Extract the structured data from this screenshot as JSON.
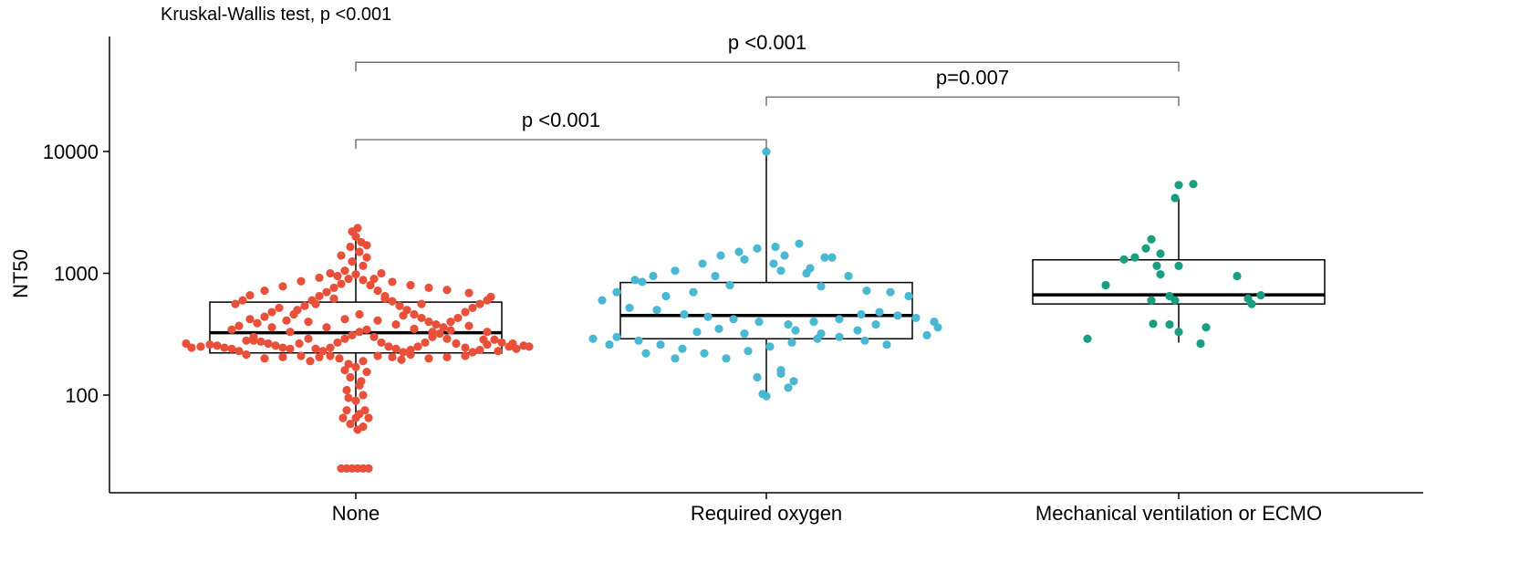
{
  "chart_data": {
    "type": "box-jitter",
    "title": "",
    "subtitle": "Kruskal-Wallis test, p <0.001",
    "xlabel": "",
    "ylabel": "NT50",
    "y_scale": "log10",
    "ylim": [
      16,
      80000
    ],
    "y_ticks": [
      100,
      1000,
      10000
    ],
    "y_tick_labels": [
      "100",
      "1000",
      "10000"
    ],
    "categories": [
      "None",
      "Required oxygen",
      "Mechanical ventilation or ECMO"
    ],
    "colors": [
      "#E8503A",
      "#4BB8D3",
      "#1A9E82"
    ],
    "boxes": [
      {
        "category": "None",
        "whisker_low": 52,
        "q1": 222,
        "median": 325,
        "q3": 580,
        "whisker_high": 2350
      },
      {
        "category": "Required oxygen",
        "whisker_low": 100,
        "q1": 290,
        "median": 450,
        "q3": 840,
        "whisker_high": 9900
      },
      {
        "category": "Mechanical ventilation or ECMO",
        "whisker_low": 270,
        "q1": 560,
        "median": 665,
        "q3": 1290,
        "whisker_high": 4100
      }
    ],
    "comparisons": [
      {
        "group1": "None",
        "group2": "Required oxygen",
        "label": "p <0.001",
        "y": 12500
      },
      {
        "group1": "Required oxygen",
        "group2": "Mechanical ventilation or ECMO",
        "label": "p=0.007",
        "y": 28000
      },
      {
        "group1": "None",
        "group2": "Mechanical ventilation or ECMO",
        "label": "p <0.001",
        "y": 54000
      }
    ],
    "series": [
      {
        "category": "None",
        "points": [
          [
            -0.93,
            265
          ],
          [
            -0.9,
            245
          ],
          [
            -0.85,
            250
          ],
          [
            -0.8,
            260
          ],
          [
            -0.76,
            255
          ],
          [
            -0.72,
            245
          ],
          [
            -0.68,
            240
          ],
          [
            -0.64,
            230
          ],
          [
            -0.6,
            280
          ],
          [
            -0.56,
            300
          ],
          [
            -0.52,
            275
          ],
          [
            -0.48,
            265
          ],
          [
            -0.44,
            255
          ],
          [
            -0.4,
            245
          ],
          [
            -0.36,
            240
          ],
          [
            -0.31,
            265
          ],
          [
            -0.26,
            290
          ],
          [
            -0.22,
            240
          ],
          [
            -0.18,
            230
          ],
          [
            -0.14,
            245
          ],
          [
            -0.1,
            270
          ],
          [
            -0.06,
            290
          ],
          [
            -0.02,
            310
          ],
          [
            0.02,
            330
          ],
          [
            0.06,
            345
          ],
          [
            0.1,
            300
          ],
          [
            0.14,
            270
          ],
          [
            0.18,
            250
          ],
          [
            0.22,
            240
          ],
          [
            0.26,
            225
          ],
          [
            0.3,
            235
          ],
          [
            0.34,
            250
          ],
          [
            0.38,
            270
          ],
          [
            0.42,
            300
          ],
          [
            0.46,
            320
          ],
          [
            0.5,
            290
          ],
          [
            0.55,
            265
          ],
          [
            0.6,
            245
          ],
          [
            0.64,
            225
          ],
          [
            0.68,
            235
          ],
          [
            0.72,
            260
          ],
          [
            0.76,
            285
          ],
          [
            0.8,
            270
          ],
          [
            0.84,
            250
          ],
          [
            0.88,
            240
          ],
          [
            0.92,
            255
          ],
          [
            0.95,
            250
          ],
          [
            0.86,
            265
          ],
          [
            0.78,
            230
          ],
          [
            0.7,
            285
          ],
          [
            -0.68,
            345
          ],
          [
            -0.64,
            370
          ],
          [
            -0.58,
            420
          ],
          [
            -0.54,
            390
          ],
          [
            -0.5,
            440
          ],
          [
            -0.46,
            480
          ],
          [
            -0.42,
            520
          ],
          [
            -0.38,
            410
          ],
          [
            -0.34,
            460
          ],
          [
            -0.28,
            540
          ],
          [
            -0.24,
            600
          ],
          [
            -0.2,
            650
          ],
          [
            -0.16,
            700
          ],
          [
            -0.12,
            760
          ],
          [
            -0.08,
            820
          ],
          [
            -0.04,
            900
          ],
          [
            0.0,
            980
          ],
          [
            0.04,
            880
          ],
          [
            0.08,
            800
          ],
          [
            0.12,
            720
          ],
          [
            0.16,
            650
          ],
          [
            0.2,
            590
          ],
          [
            0.24,
            540
          ],
          [
            0.28,
            500
          ],
          [
            0.32,
            460
          ],
          [
            0.36,
            430
          ],
          [
            0.4,
            400
          ],
          [
            0.44,
            380
          ],
          [
            0.48,
            360
          ],
          [
            0.52,
            340
          ],
          [
            0.56,
            430
          ],
          [
            0.6,
            480
          ],
          [
            0.64,
            520
          ],
          [
            0.68,
            560
          ],
          [
            0.72,
            600
          ],
          [
            0.74,
            640
          ],
          [
            0.62,
            690
          ],
          [
            0.5,
            730
          ],
          [
            0.4,
            760
          ],
          [
            0.3,
            800
          ],
          [
            0.2,
            850
          ],
          [
            0.1,
            900
          ],
          [
            -0.1,
            950
          ],
          [
            -0.2,
            920
          ],
          [
            -0.3,
            860
          ],
          [
            -0.4,
            780
          ],
          [
            -0.5,
            720
          ],
          [
            -0.58,
            660
          ],
          [
            -0.62,
            600
          ],
          [
            -0.66,
            560
          ],
          [
            -0.06,
            1050
          ],
          [
            0.04,
            1150
          ],
          [
            -0.14,
            1000
          ],
          [
            0.14,
            1000
          ],
          [
            -0.02,
            1250
          ],
          [
            0.06,
            1350
          ],
          [
            -0.08,
            1400
          ],
          [
            0.02,
            1500
          ],
          [
            -0.03,
            1650
          ],
          [
            0.03,
            1800
          ],
          [
            0.06,
            1700
          ],
          [
            0.0,
            2000
          ],
          [
            -0.02,
            2200
          ],
          [
            0.01,
            2350
          ],
          [
            -0.56,
            280
          ],
          [
            -0.46,
            360
          ],
          [
            -0.36,
            330
          ],
          [
            -0.26,
            400
          ],
          [
            -0.16,
            360
          ],
          [
            -0.06,
            420
          ],
          [
            0.02,
            460
          ],
          [
            0.12,
            410
          ],
          [
            0.22,
            380
          ],
          [
            0.32,
            350
          ],
          [
            0.42,
            330
          ],
          [
            0.52,
            400
          ],
          [
            0.62,
            370
          ],
          [
            0.72,
            330
          ],
          [
            -0.32,
            500
          ],
          [
            0.26,
            450
          ],
          [
            -0.22,
            560
          ],
          [
            0.36,
            560
          ],
          [
            -0.12,
            620
          ],
          [
            0.16,
            620
          ],
          [
            -0.09,
            200
          ],
          [
            -0.04,
            180
          ],
          [
            0.0,
            170
          ],
          [
            0.04,
            190
          ],
          [
            -0.14,
            210
          ],
          [
            0.12,
            210
          ],
          [
            -0.2,
            205
          ],
          [
            0.2,
            205
          ],
          [
            -0.3,
            210
          ],
          [
            0.3,
            215
          ],
          [
            -0.4,
            205
          ],
          [
            0.4,
            200
          ],
          [
            -0.5,
            200
          ],
          [
            0.5,
            205
          ],
          [
            -0.6,
            215
          ],
          [
            0.6,
            210
          ],
          [
            -0.25,
            190
          ],
          [
            0.25,
            195
          ],
          [
            -0.06,
            160
          ],
          [
            0.06,
            155
          ],
          [
            -0.03,
            140
          ],
          [
            0.03,
            130
          ],
          [
            -0.05,
            110
          ],
          [
            0.04,
            100
          ],
          [
            0.0,
            90
          ],
          [
            0.02,
            120
          ],
          [
            -0.04,
            95
          ],
          [
            -0.05,
            75
          ],
          [
            0.05,
            75
          ],
          [
            0.02,
            70
          ],
          [
            -0.07,
            65
          ],
          [
            0.0,
            65
          ],
          [
            0.07,
            65
          ],
          [
            -0.03,
            58
          ],
          [
            0.04,
            55
          ],
          [
            0.01,
            52
          ],
          [
            -0.08,
            25
          ],
          [
            -0.05,
            25
          ],
          [
            -0.02,
            25
          ],
          [
            0.01,
            25
          ],
          [
            0.04,
            25
          ],
          [
            0.07,
            25
          ]
        ]
      },
      {
        "category": "Required oxygen",
        "points": [
          [
            0.0,
            9950
          ],
          [
            0.18,
            1750
          ],
          [
            0.05,
            1650
          ],
          [
            -0.05,
            1600
          ],
          [
            -0.15,
            1500
          ],
          [
            -0.25,
            1400
          ],
          [
            0.1,
            1400
          ],
          [
            0.32,
            1350
          ],
          [
            0.36,
            1350
          ],
          [
            0.24,
            1100
          ],
          [
            -0.12,
            1300
          ],
          [
            0.04,
            1200
          ],
          [
            -0.35,
            1200
          ],
          [
            -0.5,
            1050
          ],
          [
            0.08,
            1050
          ],
          [
            0.22,
            1000
          ],
          [
            -0.28,
            950
          ],
          [
            -0.62,
            950
          ],
          [
            0.45,
            950
          ],
          [
            -0.72,
            880
          ],
          [
            -0.82,
            700
          ],
          [
            -0.68,
            850
          ],
          [
            -0.55,
            650
          ],
          [
            -0.4,
            700
          ],
          [
            -0.2,
            800
          ],
          [
            0.3,
            780
          ],
          [
            0.55,
            720
          ],
          [
            0.68,
            700
          ],
          [
            0.78,
            650
          ],
          [
            -0.9,
            600
          ],
          [
            -0.75,
            520
          ],
          [
            -0.6,
            500
          ],
          [
            -0.45,
            460
          ],
          [
            -0.32,
            440
          ],
          [
            -0.18,
            420
          ],
          [
            -0.04,
            400
          ],
          [
            0.12,
            380
          ],
          [
            0.26,
            400
          ],
          [
            0.4,
            420
          ],
          [
            0.52,
            460
          ],
          [
            0.62,
            480
          ],
          [
            0.72,
            450
          ],
          [
            0.82,
            430
          ],
          [
            0.92,
            400
          ],
          [
            0.94,
            360
          ],
          [
            0.88,
            310
          ],
          [
            -0.95,
            290
          ],
          [
            -0.82,
            300
          ],
          [
            -0.7,
            280
          ],
          [
            -0.58,
            260
          ],
          [
            -0.46,
            240
          ],
          [
            -0.34,
            220
          ],
          [
            -0.22,
            200
          ],
          [
            -0.1,
            230
          ],
          [
            0.02,
            250
          ],
          [
            0.14,
            270
          ],
          [
            0.28,
            290
          ],
          [
            0.4,
            300
          ],
          [
            0.54,
            280
          ],
          [
            0.66,
            260
          ],
          [
            -0.38,
            330
          ],
          [
            -0.26,
            350
          ],
          [
            -0.12,
            320
          ],
          [
            0.16,
            340
          ],
          [
            0.3,
            320
          ],
          [
            0.5,
            340
          ],
          [
            -0.86,
            260
          ],
          [
            -0.66,
            220
          ],
          [
            -0.5,
            200
          ],
          [
            0.08,
            160
          ],
          [
            -0.05,
            140
          ],
          [
            0.15,
            130
          ],
          [
            0.12,
            115
          ],
          [
            -0.02,
            102
          ],
          [
            0.0,
            98
          ],
          [
            0.08,
            150
          ],
          [
            0.6,
            380
          ]
        ]
      },
      {
        "category": "Mechanical ventilation or ECMO",
        "points": [
          [
            0.08,
            5400
          ],
          [
            0.0,
            5300
          ],
          [
            -0.02,
            4150
          ],
          [
            -0.15,
            1900
          ],
          [
            -0.18,
            1600
          ],
          [
            -0.1,
            1450
          ],
          [
            -0.24,
            1350
          ],
          [
            -0.3,
            1300
          ],
          [
            0.0,
            1150
          ],
          [
            -0.12,
            1150
          ],
          [
            0.32,
            950
          ],
          [
            -0.1,
            980
          ],
          [
            -0.4,
            800
          ],
          [
            0.45,
            660
          ],
          [
            -0.05,
            650
          ],
          [
            -0.02,
            600
          ],
          [
            -0.15,
            600
          ],
          [
            0.4,
            560
          ],
          [
            0.38,
            620
          ],
          [
            -0.05,
            380
          ],
          [
            -0.14,
            385
          ],
          [
            0.0,
            330
          ],
          [
            0.15,
            360
          ],
          [
            -0.5,
            290
          ],
          [
            0.12,
            265
          ]
        ]
      }
    ]
  }
}
